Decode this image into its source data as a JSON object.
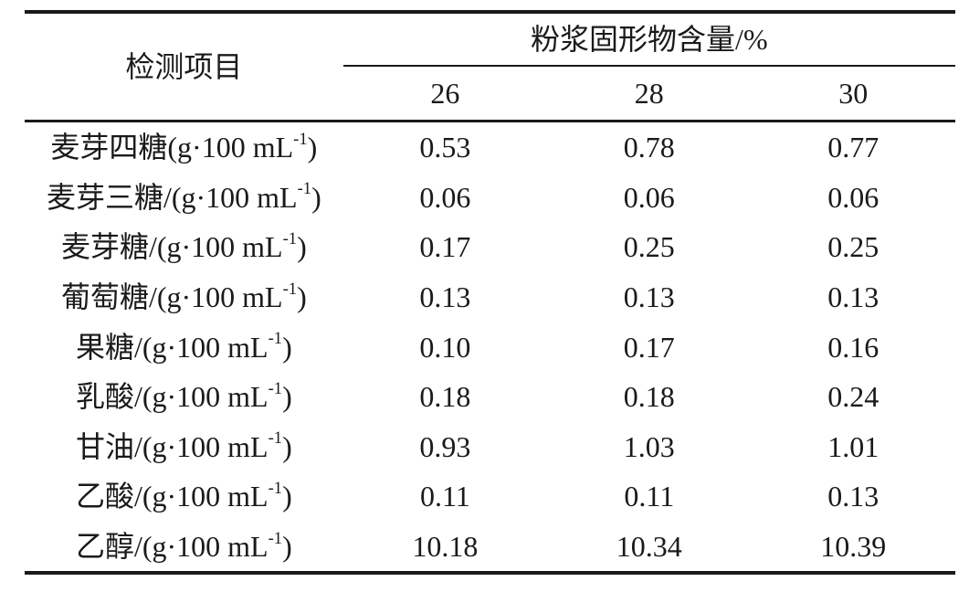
{
  "table": {
    "header": {
      "item_col": "检测项目",
      "group_col": "粉浆固形物含量/%",
      "sub_cols": [
        "26",
        "28",
        "30"
      ]
    },
    "rows": [
      {
        "label": "麦芽四糖(g·100 mL",
        "sup": "-1",
        "label_end": ")",
        "values": [
          "0.53",
          "0.78",
          "0.77"
        ]
      },
      {
        "label": "麦芽三糖/(g·100 mL",
        "sup": "-1",
        "label_end": ")",
        "values": [
          "0.06",
          "0.06",
          "0.06"
        ]
      },
      {
        "label": "麦芽糖/(g·100 mL",
        "sup": "-1",
        "label_end": ")",
        "values": [
          "0.17",
          "0.25",
          "0.25"
        ]
      },
      {
        "label": "葡萄糖/(g·100 mL",
        "sup": "-1",
        "label_end": ")",
        "values": [
          "0.13",
          "0.13",
          "0.13"
        ]
      },
      {
        "label": "果糖/(g·100 mL",
        "sup": "-1",
        "label_end": ")",
        "values": [
          "0.10",
          "0.17",
          "0.16"
        ]
      },
      {
        "label": "乳酸/(g·100 mL",
        "sup": "-1",
        "label_end": ")",
        "values": [
          "0.18",
          "0.18",
          "0.24"
        ]
      },
      {
        "label": "甘油/(g·100 mL",
        "sup": "-1",
        "label_end": ")",
        "values": [
          "0.93",
          "1.03",
          "1.01"
        ]
      },
      {
        "label": "乙酸/(g·100 mL",
        "sup": "-1",
        "label_end": ")",
        "values": [
          "0.11",
          "0.11",
          "0.13"
        ]
      },
      {
        "label": "乙醇/(g·100 mL",
        "sup": "-1",
        "label_end": ")",
        "values": [
          "10.18",
          "10.34",
          "10.39"
        ]
      }
    ]
  },
  "chart_data": {
    "type": "table",
    "title": "粉浆固形物含量/%",
    "row_header": "检测项目",
    "columns": [
      "26",
      "28",
      "30"
    ],
    "row_labels": [
      "麦芽四糖(g·100 mL⁻¹)",
      "麦芽三糖/(g·100 mL⁻¹)",
      "麦芽糖/(g·100 mL⁻¹)",
      "葡萄糖/(g·100 mL⁻¹)",
      "果糖/(g·100 mL⁻¹)",
      "乳酸/(g·100 mL⁻¹)",
      "甘油/(g·100 mL⁻¹)",
      "乙酸/(g·100 mL⁻¹)",
      "乙醇/(g·100 mL⁻¹)"
    ],
    "series": [
      {
        "name": "26",
        "values": [
          0.53,
          0.06,
          0.17,
          0.13,
          0.1,
          0.18,
          0.93,
          0.11,
          10.18
        ]
      },
      {
        "name": "28",
        "values": [
          0.78,
          0.06,
          0.25,
          0.13,
          0.17,
          0.18,
          1.03,
          0.11,
          10.34
        ]
      },
      {
        "name": "30",
        "values": [
          0.77,
          0.06,
          0.25,
          0.13,
          0.16,
          0.24,
          1.01,
          0.13,
          10.39
        ]
      }
    ],
    "text_color": "#1a1a1a",
    "rule_color": "#1a1a1a",
    "background": "#ffffff"
  }
}
